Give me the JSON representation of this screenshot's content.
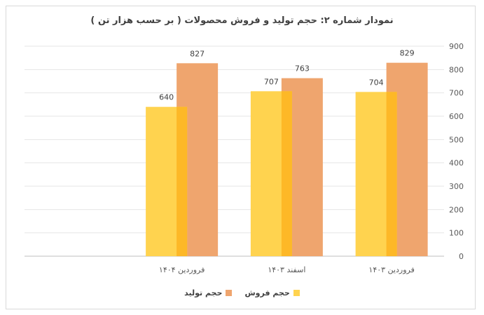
{
  "chart_data": {
    "type": "bar",
    "title": "نمودار شماره ۲: حجم تولید و فروش محصولات ( بر حسب هزار تن )",
    "categories": [
      "فروردین ۱۴۰۳",
      "اسفند ۱۴۰۳",
      "فروردین ۱۴۰۴"
    ],
    "series": [
      {
        "name": "حجم فروش",
        "values": [
          704,
          707,
          640
        ],
        "color": "#FFD34F",
        "color_overlap": "#FDB827"
      },
      {
        "name": "حجم تولید",
        "values": [
          829,
          763,
          827
        ],
        "color": "#EFA56E"
      }
    ],
    "ylim": [
      0,
      900
    ],
    "yticks": [
      0,
      100,
      200,
      300,
      400,
      500,
      600,
      700,
      800,
      900
    ],
    "grid": true,
    "legend": "bottom",
    "yaxis_side": "right"
  }
}
